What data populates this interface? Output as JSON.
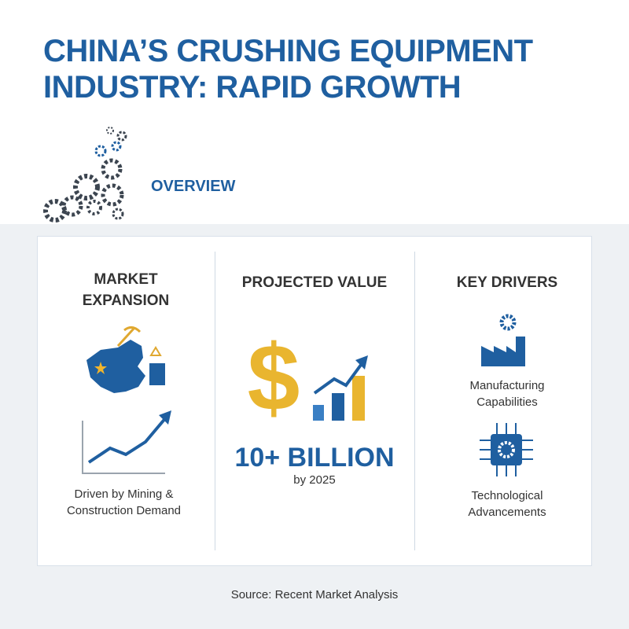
{
  "header": {
    "title": "CHINA’S CRUSHING EQUIPMENT INDUSTRY: RAPID GROWTH",
    "section": "OVERVIEW"
  },
  "columns": [
    {
      "heading": "MARKET EXPANSION",
      "caption": "Driven by Mining & Construction Demand"
    },
    {
      "heading": "PROJECTED VALUE",
      "value": "10+ BILLION",
      "note": "by 2025"
    },
    {
      "heading": "KEY DRIVERS",
      "items": [
        "Manufacturing Capabilities",
        "Technological Advancements"
      ]
    }
  ],
  "footer": {
    "source": "Source: Recent Market Analysis"
  }
}
